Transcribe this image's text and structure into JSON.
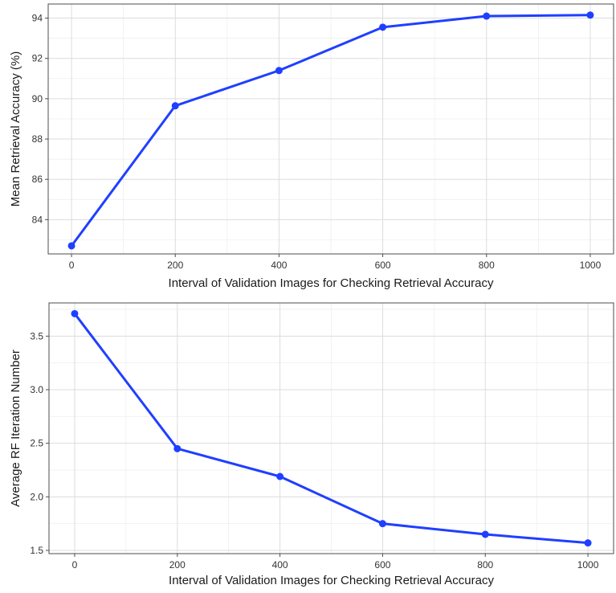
{
  "chart_data": [
    {
      "type": "line",
      "xlabel": "Interval of Validation Images for Checking Retrieval Accuracy",
      "ylabel": "Mean Retrieval Accuracy (%)",
      "x": [
        0,
        200,
        400,
        600,
        800,
        1000
      ],
      "series": [
        {
          "values": [
            82.7,
            89.65,
            91.4,
            93.55,
            94.1,
            94.15
          ]
        }
      ],
      "xlim": [
        -45,
        1045
      ],
      "ylim": [
        82.3,
        94.7
      ],
      "xticks": [
        0,
        200,
        400,
        600,
        800,
        1000
      ],
      "yticks": [
        84,
        86,
        88,
        90,
        92,
        94
      ],
      "grid": true,
      "legend": "none",
      "color": "#1f3fff"
    },
    {
      "type": "line",
      "xlabel": "Interval of Validation Images for Checking Retrieval Accuracy",
      "ylabel": "Average RF Iteration Number",
      "x": [
        0,
        200,
        400,
        600,
        800,
        1000
      ],
      "series": [
        {
          "values": [
            3.71,
            2.45,
            2.19,
            1.75,
            1.65,
            1.57
          ]
        }
      ],
      "xlim": [
        -50,
        1050
      ],
      "ylim": [
        1.47,
        3.81
      ],
      "xticks": [
        0,
        200,
        400,
        600,
        800,
        1000
      ],
      "yticks": [
        1.5,
        2.0,
        2.5,
        3.0,
        3.5
      ],
      "grid": true,
      "legend": "none",
      "color": "#1f3fff"
    }
  ]
}
